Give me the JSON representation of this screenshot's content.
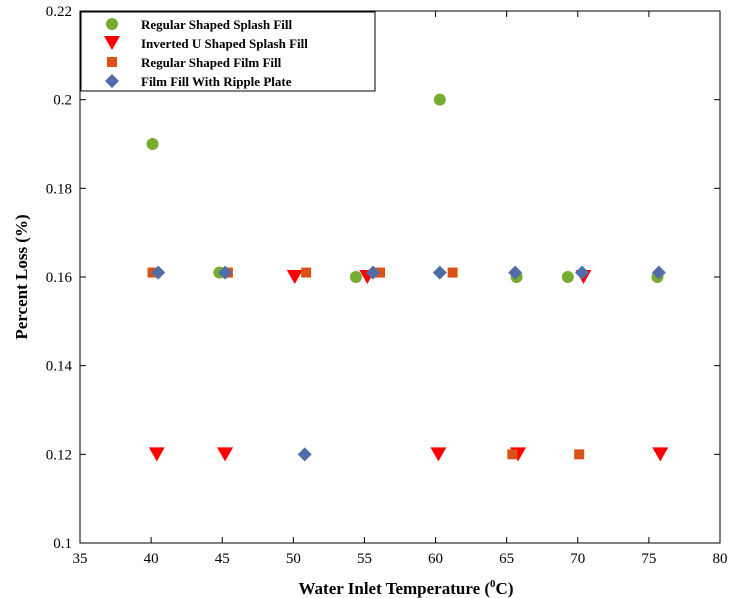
{
  "chart_data": {
    "type": "scatter",
    "title": "",
    "xlabel": "Water Inlet Temperature (",
    "xlabel_sup": "0",
    "xlabel_end": "C)",
    "ylabel": "Percent Loss (%)",
    "xlim": [
      35,
      80
    ],
    "ylim": [
      0.1,
      0.22
    ],
    "xticks": [
      "35",
      "40",
      "45",
      "50",
      "55",
      "60",
      "65",
      "70",
      "75",
      "80"
    ],
    "yticks": [
      "0.1",
      "0.12",
      "0.14",
      "0.16",
      "0.18",
      "0.2",
      "0.22"
    ],
    "grid": false,
    "legend_position": "top-left",
    "series": [
      {
        "name": "Regular Shaped Splash Fill",
        "marker": "circle",
        "color": "#77AC30",
        "points": [
          [
            40.1,
            0.19
          ],
          [
            44.8,
            0.161
          ],
          [
            54.4,
            0.16
          ],
          [
            60.3,
            0.2
          ],
          [
            65.7,
            0.16
          ],
          [
            69.3,
            0.16
          ],
          [
            75.6,
            0.16
          ]
        ]
      },
      {
        "name": "Inverted U Shaped Splash Fill",
        "marker": "triangle-down",
        "color": "#FF0000",
        "points": [
          [
            40.4,
            0.12
          ],
          [
            45.2,
            0.12
          ],
          [
            50.1,
            0.16
          ],
          [
            55.2,
            0.16
          ],
          [
            60.2,
            0.12
          ],
          [
            65.8,
            0.12
          ],
          [
            70.4,
            0.16
          ],
          [
            75.8,
            0.12
          ]
        ]
      },
      {
        "name": "Regular Shaped Film Fill",
        "marker": "square",
        "color": "#D95319",
        "points": [
          [
            40.1,
            0.161
          ],
          [
            45.4,
            0.161
          ],
          [
            50.9,
            0.161
          ],
          [
            56.1,
            0.161
          ],
          [
            61.2,
            0.161
          ],
          [
            65.4,
            0.12
          ],
          [
            70.1,
            0.12
          ]
        ]
      },
      {
        "name": "Film Fill With Ripple Plate",
        "marker": "diamond",
        "color": "#4F6EA8",
        "points": [
          [
            40.5,
            0.161
          ],
          [
            45.2,
            0.161
          ],
          [
            50.8,
            0.12
          ],
          [
            55.6,
            0.161
          ],
          [
            60.3,
            0.161
          ],
          [
            65.6,
            0.161
          ],
          [
            70.3,
            0.161
          ],
          [
            75.7,
            0.161
          ]
        ]
      }
    ]
  }
}
